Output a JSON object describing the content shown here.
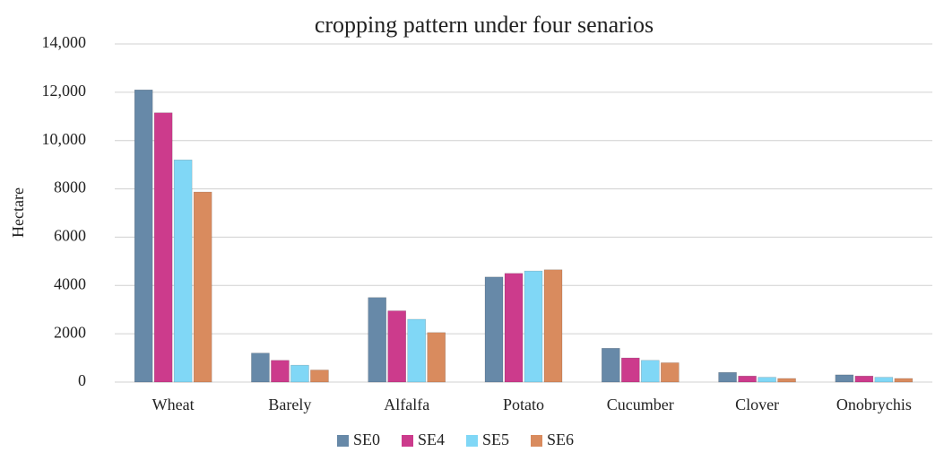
{
  "chart_data": {
    "type": "bar",
    "title": "cropping pattern under four senarios",
    "y_label": "Hectare",
    "categories": [
      "Wheat",
      "Barely",
      "Alfalfa",
      "Potato",
      "Cucumber",
      "Clover",
      "Onobrychis"
    ],
    "series": [
      {
        "name": "SE0",
        "color": "#6789a8",
        "values": [
          12100,
          1200,
          3500,
          4350,
          1400,
          400,
          300
        ]
      },
      {
        "name": "SE4",
        "color": "#cc3b8c",
        "values": [
          11150,
          900,
          2950,
          4500,
          1000,
          250,
          250
        ]
      },
      {
        "name": "SE5",
        "color": "#80d7f6",
        "values": [
          9200,
          700,
          2600,
          4600,
          900,
          200,
          200
        ]
      },
      {
        "name": "SE6",
        "color": "#d98b5e",
        "values": [
          7870,
          500,
          2050,
          4650,
          800,
          150,
          150
        ]
      }
    ],
    "ylim": [
      0,
      14000
    ],
    "yticks": [
      0,
      2000,
      4000,
      6000,
      8000,
      {
        "value": 10000,
        "label": "10,000"
      },
      {
        "value": 12000,
        "label": "12,000"
      },
      {
        "value": 14000,
        "label": "14,000"
      }
    ],
    "grid": true,
    "legend": "bottom"
  }
}
